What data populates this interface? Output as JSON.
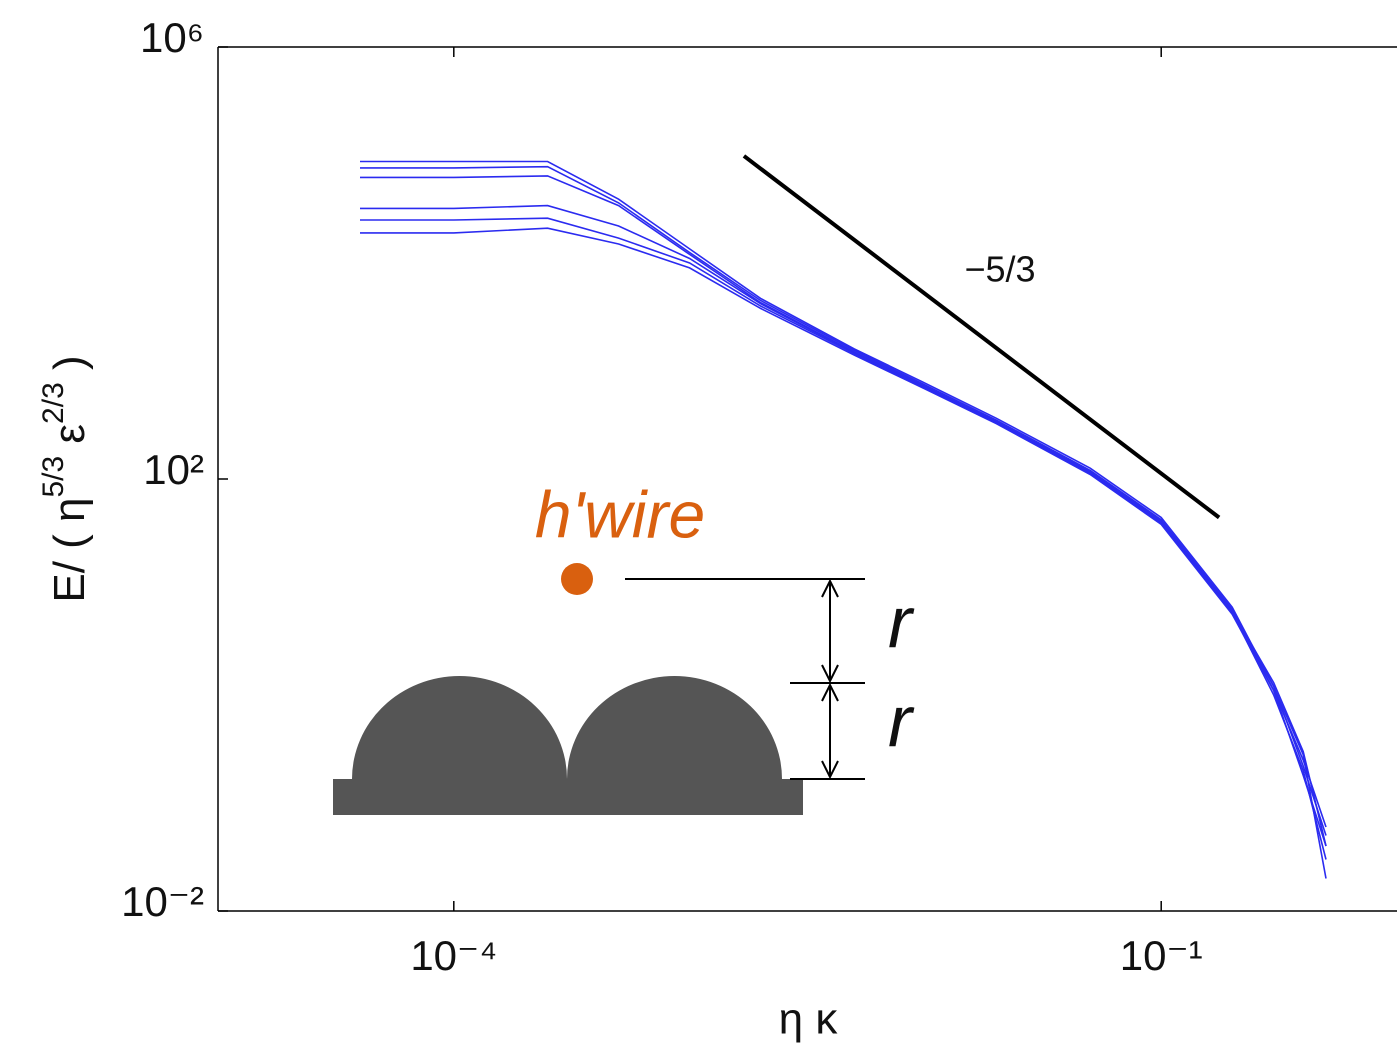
{
  "chart_data": {
    "type": "line",
    "x_label": "η κ",
    "y_label": [
      {
        "text": "E/ ( η"
      },
      {
        "text": "5/3",
        "sup": true
      },
      {
        "text": " ε"
      },
      {
        "text": "2/3",
        "sup": true
      },
      {
        "text": " )"
      }
    ],
    "xscale": "log",
    "yscale": "log",
    "xlim": [
      1e-05,
      1
    ],
    "ylim": [
      0.01,
      1000000
    ],
    "xticks": [
      {
        "value": 0.0001,
        "label": "10⁻⁴"
      },
      {
        "value": 0.1,
        "label": "10⁻¹"
      }
    ],
    "yticks": [
      {
        "value": 0.01,
        "label": "10⁻²"
      },
      {
        "value": 100,
        "label": "10²"
      },
      {
        "value": 1000000,
        "label": "10⁶"
      }
    ],
    "x": [
      4e-05,
      0.0001,
      0.00025,
      0.0005,
      0.001,
      0.002,
      0.005,
      0.01,
      0.02,
      0.05,
      0.1,
      0.2,
      0.3,
      0.4,
      0.5
    ],
    "series": [
      {
        "color": "#2b2bf0",
        "values": [
          87000,
          87000,
          87000,
          39000,
          13500,
          4700,
          1600,
          770,
          365,
          126,
          44,
          6.5,
          1.2,
          0.22,
          0.05
        ]
      },
      {
        "color": "#2b2bf0",
        "values": [
          76000,
          76000,
          78000,
          36000,
          12500,
          4500,
          1550,
          740,
          350,
          120,
          42,
          6.2,
          1.1,
          0.25,
          0.06
        ]
      },
      {
        "color": "#2b2bf0",
        "values": [
          62000,
          62000,
          64000,
          34000,
          12000,
          4300,
          1500,
          720,
          340,
          118,
          41,
          6.0,
          1.3,
          0.3,
          0.04
        ]
      },
      {
        "color": "#2b2bf0",
        "values": [
          32000,
          32000,
          34000,
          22000,
          11000,
          4200,
          1480,
          700,
          335,
          115,
          40,
          5.8,
          1.0,
          0.2,
          0.03
        ]
      },
      {
        "color": "#2b2bf0",
        "values": [
          25000,
          25000,
          26000,
          17000,
          10000,
          4000,
          1450,
          690,
          330,
          112,
          39,
          5.9,
          1.2,
          0.28,
          0.02
        ]
      },
      {
        "color": "#2b2bf0",
        "values": [
          19000,
          19000,
          21000,
          15000,
          9000,
          3800,
          1400,
          680,
          325,
          110,
          38,
          5.6,
          1.1,
          0.18,
          0.04
        ]
      }
    ],
    "reference_line": {
      "x": [
        0.0017,
        0.176
      ],
      "y": [
        98000,
        44
      ],
      "color": "#000000"
    },
    "annotations": {
      "slope_label": "−5/3",
      "probe_label": "h'wire",
      "gap_labels": [
        "r",
        "r"
      ]
    }
  }
}
